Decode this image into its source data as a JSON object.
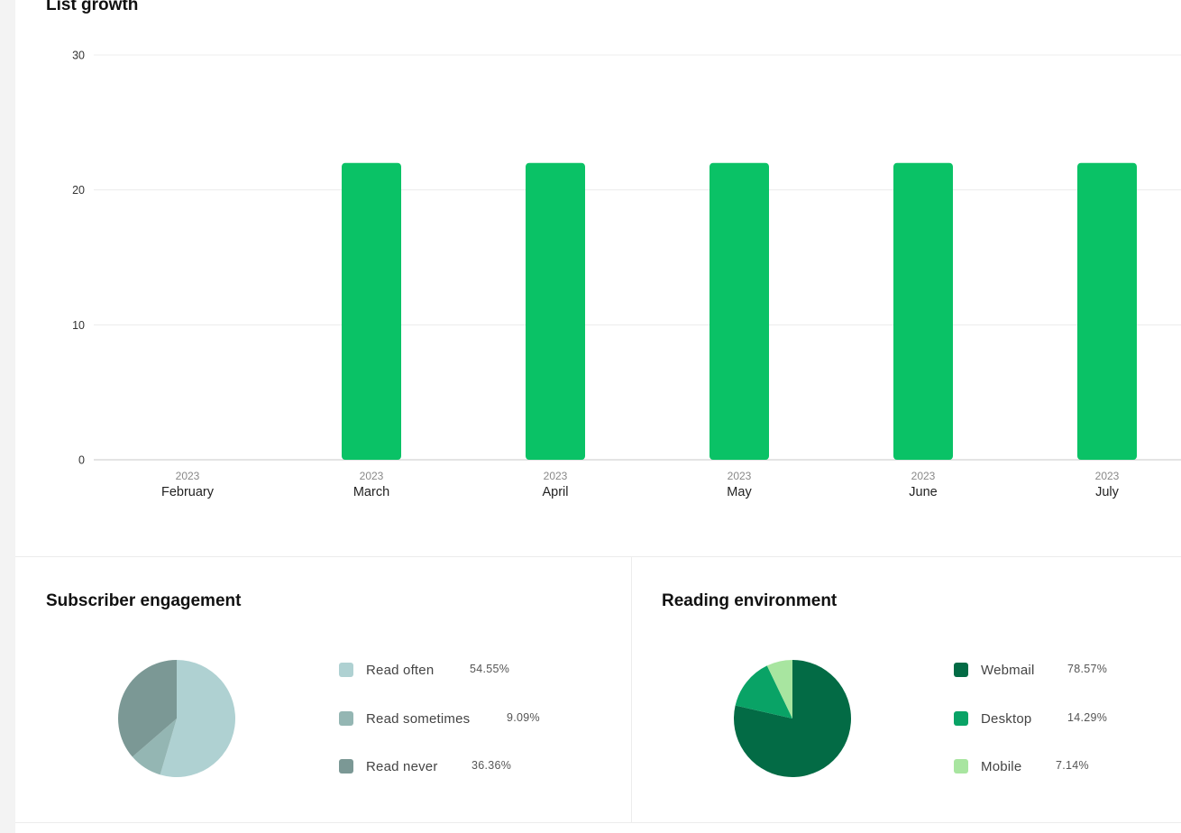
{
  "list_growth": {
    "title": "List growth"
  },
  "chart_data": [
    {
      "type": "bar",
      "title": "List growth",
      "categories": [
        "February",
        "March",
        "April",
        "May",
        "June",
        "July"
      ],
      "category_years": [
        "2023",
        "2023",
        "2023",
        "2023",
        "2023",
        "2023"
      ],
      "values": [
        0,
        22,
        22,
        22,
        22,
        22
      ],
      "yticks": [
        0,
        10,
        20,
        30
      ],
      "ylim": [
        0,
        30
      ],
      "grid": true,
      "color": "#0ac266"
    },
    {
      "type": "pie",
      "title": "Subscriber engagement",
      "labels": [
        "Read often",
        "Read sometimes",
        "Read never"
      ],
      "values": [
        54.55,
        9.09,
        36.36
      ],
      "display_values": [
        "54.55%",
        "9.09%",
        "36.36%"
      ],
      "colors": [
        "#afd1d2",
        "#94b6b3",
        "#7b9895"
      ],
      "legend_position": "right"
    },
    {
      "type": "pie",
      "title": "Reading environment",
      "labels": [
        "Webmail",
        "Desktop",
        "Mobile"
      ],
      "values": [
        78.57,
        14.29,
        7.14
      ],
      "display_values": [
        "78.57%",
        "14.29%",
        "7.14%"
      ],
      "colors": [
        "#036b45",
        "#09a366",
        "#a8e5a0"
      ],
      "legend_position": "right"
    }
  ]
}
